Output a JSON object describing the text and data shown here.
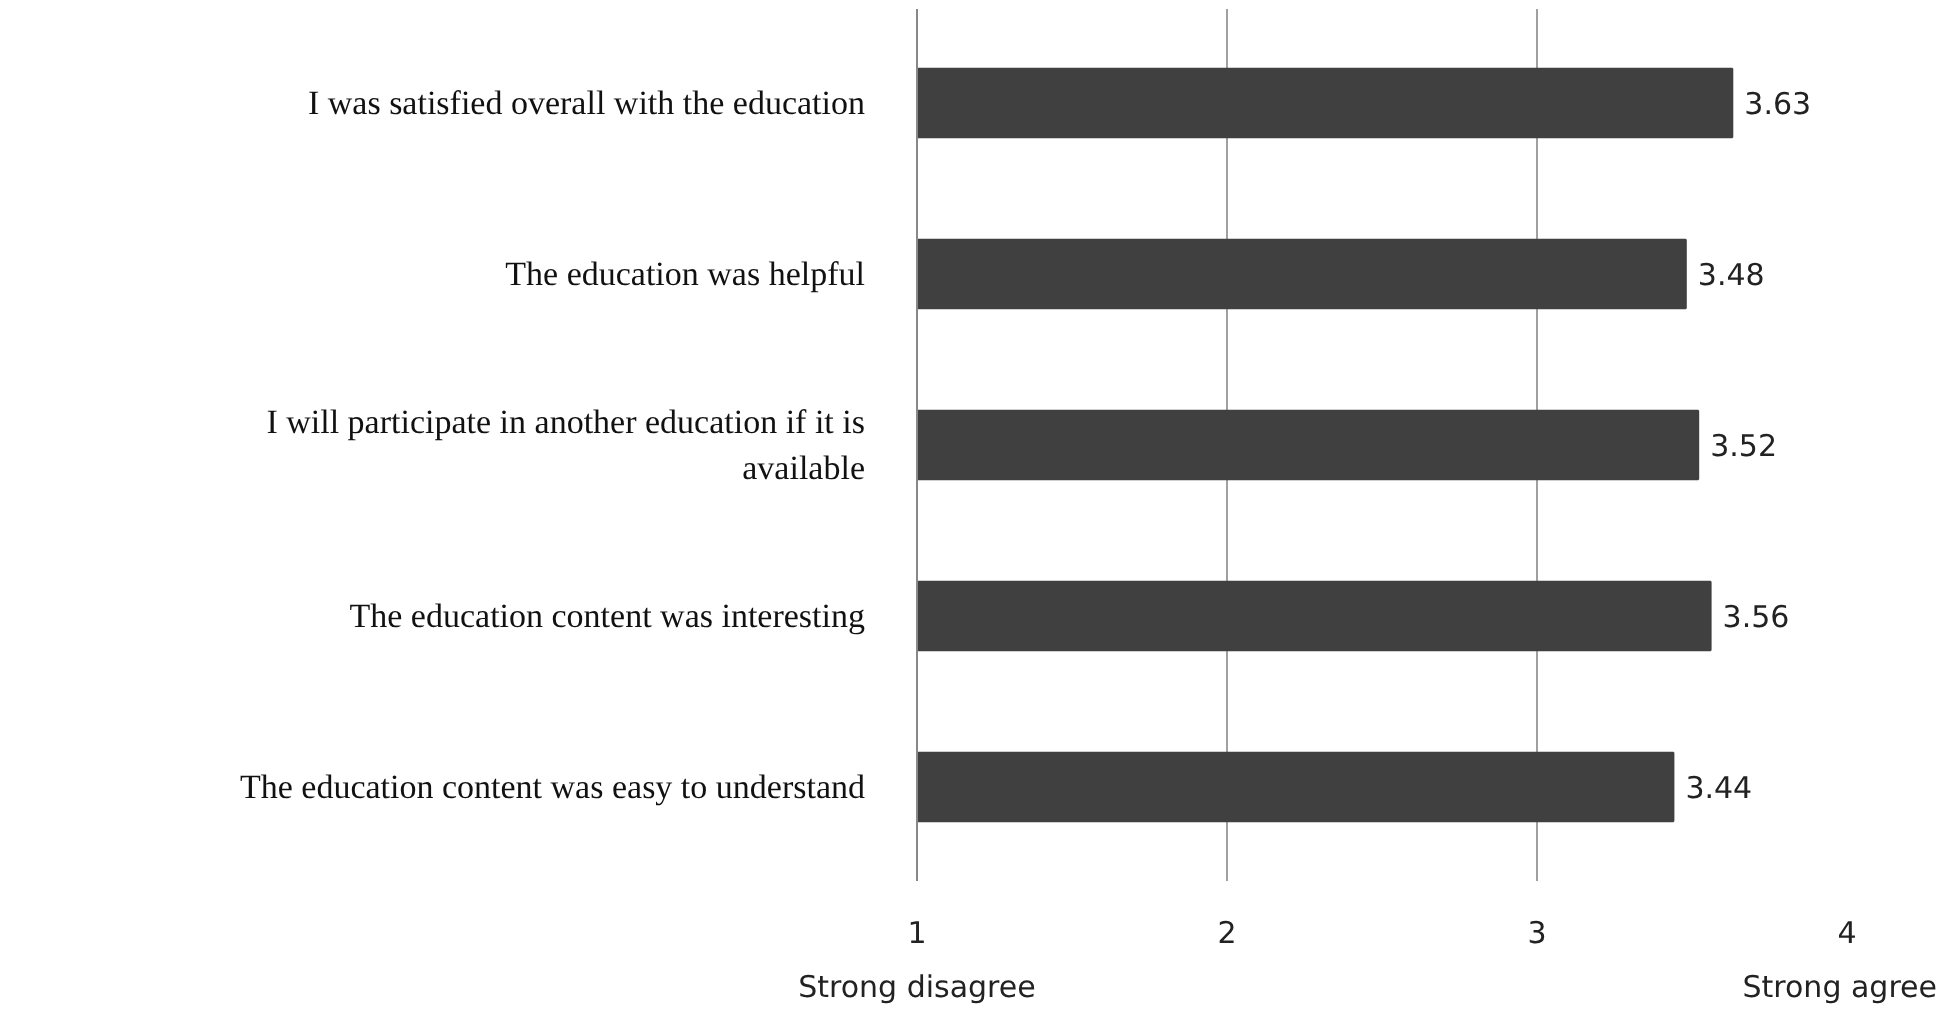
{
  "chart_data": {
    "type": "bar",
    "orientation": "horizontal",
    "categories": [
      "I was satisfied overall with the education",
      "The education was helpful",
      "I will participate in another education if it is available",
      "The education content was interesting",
      "The education content was easy to understand"
    ],
    "values": [
      3.63,
      3.48,
      3.52,
      3.56,
      3.44
    ],
    "color": "#404040",
    "xlim": [
      1,
      4
    ],
    "xticks": [
      1,
      2,
      3,
      4
    ],
    "grid": "x",
    "data_labels": true,
    "annotations": [
      "Strong disagree",
      "Strong agree"
    ]
  }
}
